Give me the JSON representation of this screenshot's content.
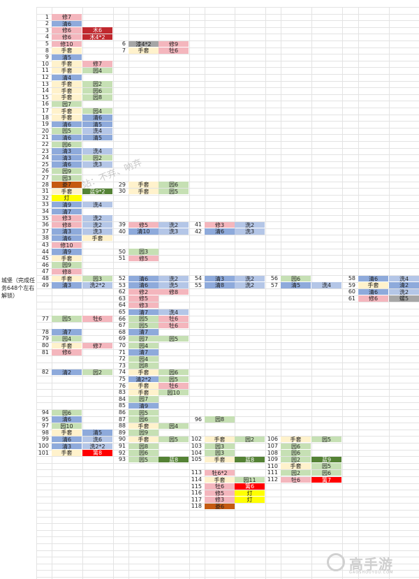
{
  "sheet_label": "城堡（完成任务648个左右解锁）",
  "watermark": "站：不弃、吶弃",
  "brand": {
    "name": "高手游",
    "domain": "GAOSHOUYOU.COM"
  },
  "colors": {
    "清": "#8eaadb",
    "修": "#f4b6bd",
    "手套": "#fff2cc",
    "园": "#c6e0b4",
    "洗": "#b4c6e7",
    "牡": "#f4b6bd",
    "木": "#c0282e",
    "漆": "#a6a6a6",
    "蓝": "#548235",
    "灯": "#ffff00",
    "篱": "#ff0000",
    "螺": "#a6a6a6",
    "菱": "#c55a11"
  },
  "tasks": [
    {
      "n": "1",
      "items": [
        "修7"
      ]
    },
    {
      "n": "2",
      "items": [
        "清6"
      ]
    },
    {
      "n": "3",
      "items": [
        "修6",
        "木6"
      ]
    },
    {
      "n": "4",
      "items": [
        "修6",
        "木4*2"
      ]
    },
    {
      "n": "5",
      "items": [
        "修10"
      ]
    },
    {
      "n": "6",
      "items": [
        "漆4*2",
        "修9"
      ]
    },
    {
      "n": "7",
      "items": [
        "手套",
        "牡6"
      ]
    },
    {
      "n": "8",
      "items": [
        "手套"
      ]
    },
    {
      "n": "9",
      "items": [
        "清5"
      ]
    },
    {
      "n": "10",
      "items": [
        "手套",
        "修7"
      ]
    },
    {
      "n": "11",
      "items": [
        "手套",
        "园4"
      ]
    },
    {
      "n": "12",
      "items": [
        "清4"
      ]
    },
    {
      "n": "13",
      "items": [
        "手套",
        "园2"
      ]
    },
    {
      "n": "14",
      "items": [
        "手套",
        "园6"
      ]
    },
    {
      "n": "15",
      "items": [
        "手套",
        "园8"
      ]
    },
    {
      "n": "16",
      "items": [
        "园7"
      ]
    },
    {
      "n": "17",
      "items": [
        "手套",
        "园4"
      ]
    },
    {
      "n": "18",
      "items": [
        "手套",
        "清6"
      ]
    },
    {
      "n": "19",
      "items": [
        "清6",
        "清5"
      ]
    },
    {
      "n": "20",
      "items": [
        "园5",
        "洗4"
      ]
    },
    {
      "n": "21",
      "items": [
        "清6",
        "清5"
      ]
    },
    {
      "n": "22",
      "items": [
        "园6"
      ]
    },
    {
      "n": "23",
      "items": [
        "清3",
        "洗4"
      ]
    },
    {
      "n": "24",
      "items": [
        "清3",
        "园2"
      ]
    },
    {
      "n": "25",
      "items": [
        "清6",
        "洗3"
      ]
    },
    {
      "n": "26",
      "items": [
        "园9"
      ]
    },
    {
      "n": "27",
      "items": [
        "园3"
      ]
    },
    {
      "n": "28",
      "items": [
        "菱7"
      ]
    },
    {
      "n": "29",
      "items": [
        "手套",
        "园6"
      ]
    },
    {
      "n": "30",
      "items": [
        "手套",
        "园5"
      ]
    },
    {
      "n": "31",
      "items": [
        "手套",
        "蓝9*2"
      ]
    },
    {
      "n": "32",
      "items": [
        "灯"
      ]
    },
    {
      "n": "33",
      "items": [
        "清9",
        "洗4"
      ]
    },
    {
      "n": "34",
      "items": [
        "清7"
      ]
    },
    {
      "n": "35",
      "items": [
        "修3",
        "洗2"
      ]
    },
    {
      "n": "36",
      "items": [
        "修8",
        "洗2"
      ]
    },
    {
      "n": "37",
      "items": [
        "清3",
        "洗3"
      ]
    },
    {
      "n": "38",
      "items": [
        "清6",
        "手套"
      ]
    },
    {
      "n": "39",
      "items": [
        "修5",
        "洗2"
      ]
    },
    {
      "n": "40",
      "items": [
        "清10",
        "洗3"
      ]
    },
    {
      "n": "41",
      "items": [
        "修3",
        "洗2"
      ]
    },
    {
      "n": "42",
      "items": [
        "清6",
        "洗3"
      ]
    },
    {
      "n": "43",
      "items": [
        "修10"
      ]
    },
    {
      "n": "44",
      "items": [
        "清9"
      ]
    },
    {
      "n": "45",
      "items": [
        "手套"
      ]
    },
    {
      "n": "46",
      "items": [
        "园9"
      ]
    },
    {
      "n": "47",
      "items": [
        "修8"
      ]
    },
    {
      "n": "48",
      "items": [
        "手套",
        "园3"
      ]
    },
    {
      "n": "49",
      "items": [
        "清3",
        "洗2*2"
      ]
    },
    {
      "n": "50",
      "items": [
        "园3"
      ]
    },
    {
      "n": "51",
      "items": [
        "修5"
      ]
    },
    {
      "n": "52",
      "items": [
        "清6",
        "洗2"
      ]
    },
    {
      "n": "53",
      "items": [
        "清6",
        "洗5"
      ]
    },
    {
      "n": "54",
      "items": [
        "清3",
        "洗2"
      ]
    },
    {
      "n": "55",
      "items": [
        "清8",
        "洗2"
      ]
    },
    {
      "n": "56",
      "items": [
        "园6"
      ]
    },
    {
      "n": "57",
      "items": [
        "清5",
        "洗4"
      ]
    },
    {
      "n": "58",
      "items": [
        "清6",
        "洗4"
      ]
    },
    {
      "n": "59",
      "items": [
        "手套",
        "清2"
      ]
    },
    {
      "n": "60",
      "items": [
        "清6",
        "洗2"
      ]
    },
    {
      "n": "61",
      "items": [
        "修6",
        "螺5"
      ]
    },
    {
      "n": "62",
      "items": [
        "修2",
        "修8"
      ]
    },
    {
      "n": "63",
      "items": [
        "修5"
      ]
    },
    {
      "n": "64",
      "items": [
        "修3"
      ]
    },
    {
      "n": "65",
      "items": [
        "清7",
        "洗4"
      ]
    },
    {
      "n": "66",
      "items": [
        "园5",
        "牡6"
      ]
    },
    {
      "n": "67",
      "items": [
        "园5",
        "牡6"
      ]
    },
    {
      "n": "68",
      "items": [
        "清7"
      ]
    },
    {
      "n": "69",
      "items": [
        "园7",
        "园5"
      ]
    },
    {
      "n": "70",
      "items": [
        "园4"
      ]
    },
    {
      "n": "71",
      "items": [
        "清7"
      ]
    },
    {
      "n": "72",
      "items": [
        "园4"
      ]
    },
    {
      "n": "73",
      "items": [
        "园8"
      ]
    },
    {
      "n": "74",
      "items": [
        "手套",
        "园6"
      ]
    },
    {
      "n": "75",
      "items": [
        "清2*2",
        "园5"
      ]
    },
    {
      "n": "76",
      "items": [
        "手套",
        "牡6"
      ]
    },
    {
      "n": "77",
      "items": [
        "园5",
        "牡6"
      ]
    },
    {
      "n": "78",
      "items": [
        "清7"
      ]
    },
    {
      "n": "79",
      "items": [
        "园4"
      ]
    },
    {
      "n": "80",
      "items": [
        "手套",
        "修7"
      ]
    },
    {
      "n": "81",
      "items": [
        "修6"
      ]
    },
    {
      "n": "82",
      "items": [
        "清2",
        "园2"
      ]
    },
    {
      "n": "83",
      "items": [
        "手套",
        "园10"
      ]
    },
    {
      "n": "84",
      "items": [
        "园7"
      ]
    },
    {
      "n": "85",
      "items": [
        "清9"
      ]
    },
    {
      "n": "86",
      "items": [
        "园5"
      ]
    },
    {
      "n": "87",
      "items": [
        "园6"
      ]
    },
    {
      "n": "88",
      "items": [
        "手套",
        "园4"
      ]
    },
    {
      "n": "89",
      "items": [
        "园9"
      ]
    },
    {
      "n": "90",
      "items": [
        "手套",
        "园5"
      ]
    },
    {
      "n": "91",
      "items": [
        "园8"
      ]
    },
    {
      "n": "92",
      "items": [
        "园6"
      ]
    },
    {
      "n": "93",
      "items": [
        "园5",
        "蓝8"
      ]
    },
    {
      "n": "94",
      "items": [
        "园6"
      ]
    },
    {
      "n": "95",
      "items": [
        "清6"
      ]
    },
    {
      "n": "96",
      "items": [
        "园8"
      ]
    },
    {
      "n": "97",
      "items": [
        "园10"
      ]
    },
    {
      "n": "98",
      "items": [
        "手套",
        "清5"
      ]
    },
    {
      "n": "99",
      "items": [
        "清6",
        "洗6"
      ]
    },
    {
      "n": "100",
      "items": [
        "清3",
        "洗2*2"
      ]
    },
    {
      "n": "101",
      "items": [
        "手套",
        "篱8"
      ]
    },
    {
      "n": "102",
      "items": [
        "手套",
        "园2"
      ]
    },
    {
      "n": "103",
      "items": [
        "园3"
      ]
    },
    {
      "n": "104",
      "items": [
        "园3"
      ]
    },
    {
      "n": "105",
      "items": [
        "手套",
        "蓝8"
      ]
    },
    {
      "n": "106",
      "items": [
        "手套",
        "园5"
      ]
    },
    {
      "n": "107",
      "items": [
        "园6"
      ]
    },
    {
      "n": "108",
      "items": [
        "园6"
      ]
    },
    {
      "n": "109",
      "items": [
        "园2",
        "蓝9"
      ]
    },
    {
      "n": "110",
      "items": [
        "手套",
        "园5"
      ]
    },
    {
      "n": "111",
      "items": [
        "园2",
        "园6"
      ]
    },
    {
      "n": "112",
      "items": [
        "牡6",
        "篱7"
      ]
    },
    {
      "n": "113",
      "items": [
        "牡6*2"
      ]
    },
    {
      "n": "114",
      "items": [
        "手套",
        "园11"
      ]
    },
    {
      "n": "115",
      "items": [
        "牡6",
        "篱6"
      ]
    },
    {
      "n": "116",
      "items": [
        "修5",
        "灯"
      ]
    },
    {
      "n": "117",
      "items": [
        "修3",
        "灯"
      ]
    },
    {
      "n": "118",
      "items": [
        "菱6"
      ]
    }
  ]
}
